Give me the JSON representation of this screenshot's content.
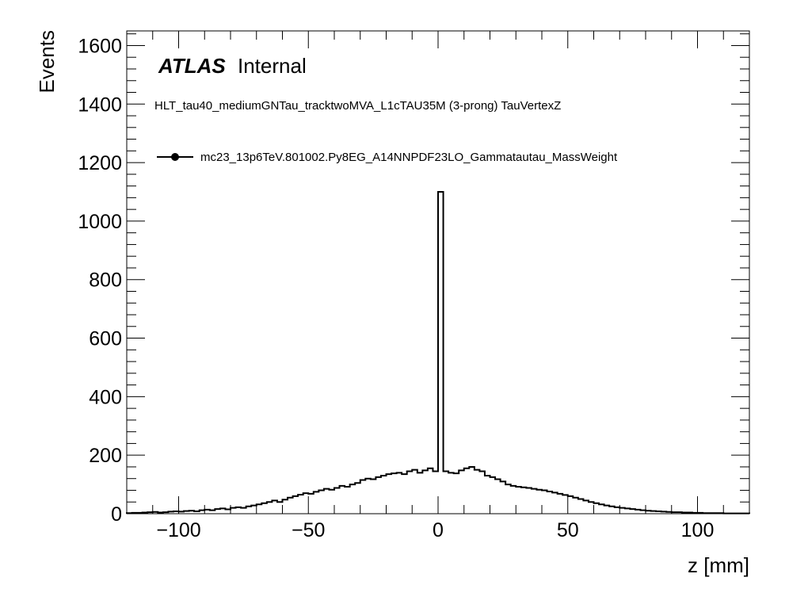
{
  "chart_data": {
    "type": "bar",
    "style": "step-histogram",
    "xlabel": "z [mm]",
    "ylabel": "Events",
    "xlim": [
      -120,
      120
    ],
    "ylim": [
      0,
      1650
    ],
    "x_major_ticks": [
      -100,
      -50,
      0,
      50,
      100
    ],
    "x_tick_labels": [
      "−100",
      "−50",
      "0",
      "50",
      "100"
    ],
    "y_major_ticks": [
      0,
      200,
      400,
      600,
      800,
      1000,
      1200,
      1400,
      1600
    ],
    "y_tick_labels": [
      "0",
      "200",
      "400",
      "600",
      "800",
      "1000",
      "1200",
      "1400",
      "1600"
    ],
    "legend_position": "top-left",
    "grid": false,
    "annotations": {
      "atlas": "ATLAS",
      "atlas_suffix": "Internal",
      "selection": "HLT_tau40_mediumGNTau_tracktwoMVA_L1cTAU35M (3-prong) TauVertexZ"
    },
    "series": [
      {
        "name": "mc23_13p6TeV.801002.Py8EG_A14NNPDF23LO_Gammatautau_MassWeight",
        "color": "#000000",
        "bin_low": -120,
        "bin_width": 2,
        "values": [
          2,
          3,
          3,
          4,
          5,
          6,
          4,
          5,
          7,
          8,
          7,
          9,
          10,
          8,
          12,
          14,
          12,
          16,
          18,
          15,
          20,
          22,
          20,
          25,
          28,
          32,
          36,
          40,
          45,
          40,
          48,
          55,
          60,
          65,
          70,
          68,
          75,
          80,
          85,
          82,
          88,
          95,
          92,
          100,
          105,
          115,
          120,
          118,
          125,
          130,
          135,
          138,
          140,
          135,
          145,
          150,
          140,
          148,
          155,
          145,
          1100,
          145,
          140,
          138,
          148,
          155,
          160,
          150,
          145,
          130,
          125,
          118,
          110,
          100,
          95,
          92,
          90,
          88,
          85,
          82,
          80,
          76,
          72,
          68,
          64,
          60,
          55,
          50,
          45,
          40,
          36,
          32,
          28,
          25,
          22,
          20,
          18,
          16,
          14,
          12,
          10,
          9,
          8,
          7,
          6,
          5,
          5,
          4,
          4,
          3,
          3,
          2,
          2,
          2,
          2,
          1,
          1,
          1,
          1,
          1
        ]
      }
    ]
  }
}
